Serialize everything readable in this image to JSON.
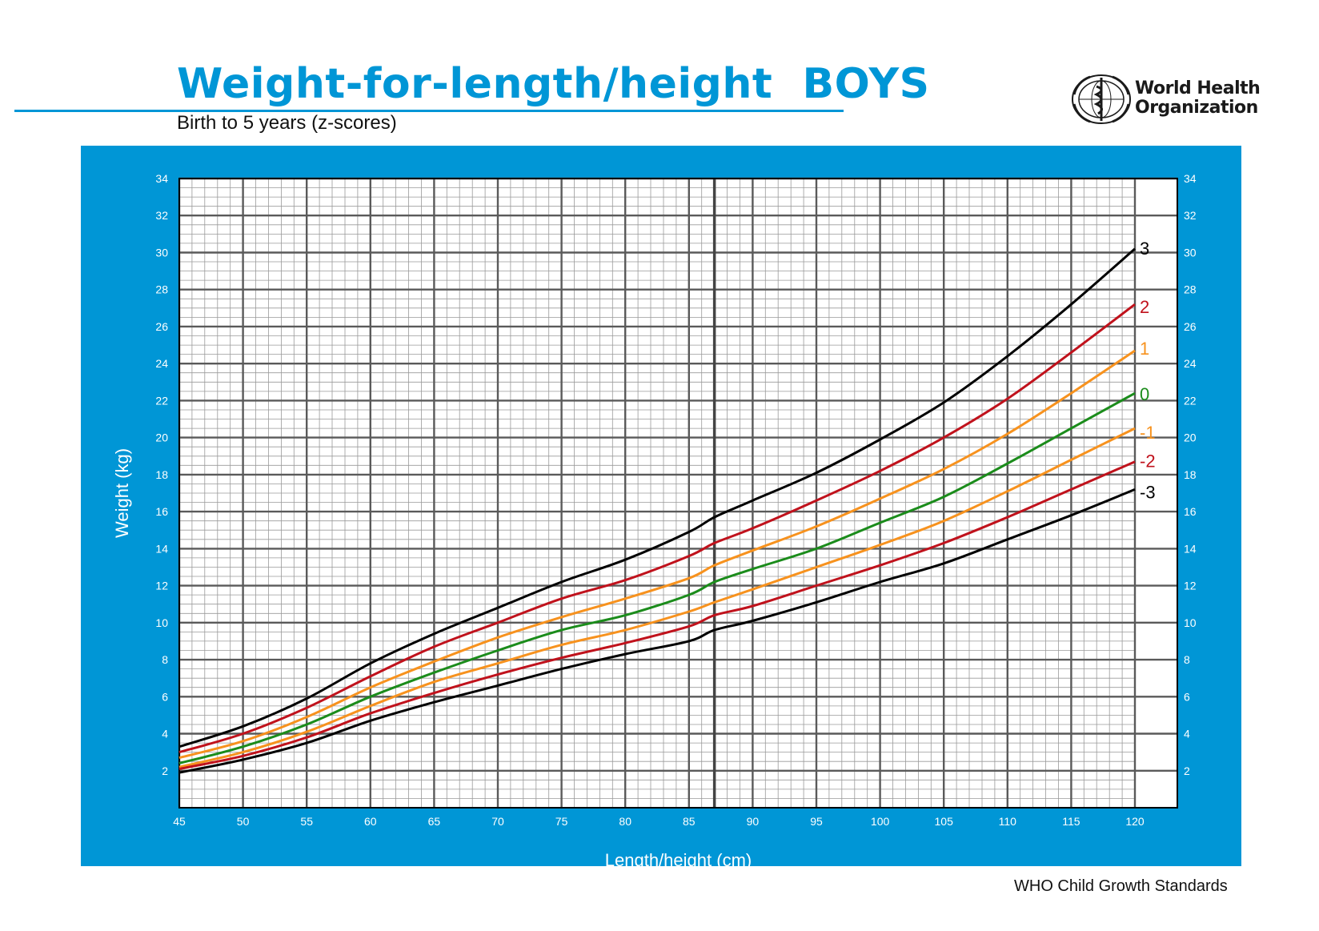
{
  "header": {
    "title": "Weight-for-length/height  BOYS",
    "subtitle": "Birth to 5 years (z-scores)",
    "logo_line1": "World Health",
    "logo_line2": "Organization"
  },
  "footer": {
    "text": "WHO Child Growth Standards"
  },
  "colors": {
    "panel": "#0096d6",
    "grid_major": "#5a5a5a",
    "grid_minor": "#9a9a9a",
    "z3": "#000000",
    "z2": "#c0121c",
    "z1": "#f7921e",
    "z0": "#1b8c1b"
  },
  "chart_data": {
    "type": "line",
    "xlabel": "Length/height (cm)",
    "ylabel": "Weight (kg)",
    "xlim": [
      45,
      120
    ],
    "ylim": [
      0,
      34
    ],
    "xticks": [
      45,
      50,
      55,
      60,
      65,
      70,
      75,
      80,
      85,
      90,
      95,
      100,
      105,
      110,
      115,
      120
    ],
    "yticks": [
      2,
      4,
      6,
      8,
      10,
      12,
      14,
      16,
      18,
      20,
      22,
      24,
      26,
      28,
      30,
      32,
      34
    ],
    "grid": true,
    "x": [
      45,
      50,
      55,
      60,
      65,
      70,
      75,
      80,
      85,
      87,
      90,
      95,
      100,
      105,
      110,
      115,
      120
    ],
    "series": [
      {
        "name": "3",
        "color": "#000000",
        "values": [
          3.3,
          4.4,
          5.9,
          7.8,
          9.4,
          10.8,
          12.2,
          13.4,
          14.9,
          15.7,
          16.6,
          18.1,
          19.9,
          21.9,
          24.4,
          27.2,
          30.2
        ]
      },
      {
        "name": "2",
        "color": "#c0121c",
        "values": [
          3.0,
          4.0,
          5.4,
          7.1,
          8.7,
          10.0,
          11.3,
          12.3,
          13.6,
          14.3,
          15.1,
          16.6,
          18.2,
          20.0,
          22.1,
          24.6,
          27.2
        ]
      },
      {
        "name": "1",
        "color": "#f7921e",
        "values": [
          2.7,
          3.6,
          4.9,
          6.5,
          7.9,
          9.2,
          10.3,
          11.3,
          12.4,
          13.1,
          13.9,
          15.2,
          16.7,
          18.3,
          20.2,
          22.4,
          24.7
        ]
      },
      {
        "name": "0",
        "color": "#1b8c1b",
        "values": [
          2.4,
          3.3,
          4.5,
          6.0,
          7.3,
          8.5,
          9.6,
          10.4,
          11.5,
          12.2,
          12.9,
          14.0,
          15.4,
          16.8,
          18.6,
          20.5,
          22.4
        ]
      },
      {
        "name": "-1",
        "color": "#f7921e",
        "values": [
          2.2,
          3.0,
          4.1,
          5.5,
          6.8,
          7.8,
          8.8,
          9.6,
          10.6,
          11.1,
          11.8,
          13.0,
          14.2,
          15.5,
          17.1,
          18.8,
          20.5
        ]
      },
      {
        "name": "-2",
        "color": "#c0121c",
        "values": [
          2.1,
          2.8,
          3.8,
          5.1,
          6.2,
          7.2,
          8.1,
          8.9,
          9.8,
          10.4,
          10.9,
          12.0,
          13.1,
          14.3,
          15.7,
          17.2,
          18.7
        ]
      },
      {
        "name": "-3",
        "color": "#000000",
        "values": [
          1.9,
          2.6,
          3.5,
          4.7,
          5.7,
          6.6,
          7.5,
          8.3,
          9.0,
          9.6,
          10.1,
          11.1,
          12.2,
          13.2,
          14.5,
          15.8,
          17.2
        ]
      }
    ]
  }
}
